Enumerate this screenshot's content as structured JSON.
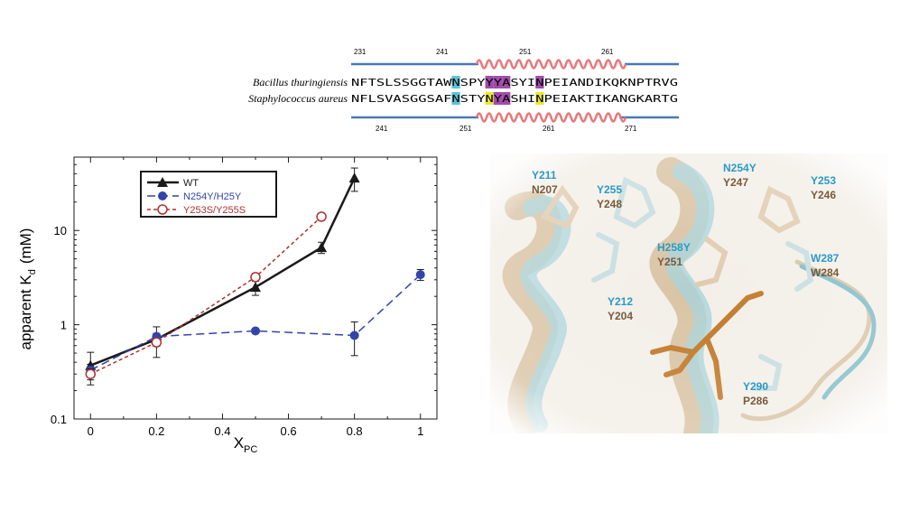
{
  "alignment": {
    "top_numbers": [
      "231",
      "241",
      "251",
      "261"
    ],
    "bottom_numbers": [
      "241",
      "251",
      "261",
      "271"
    ],
    "rows": [
      {
        "species": "Bacillus thuringiensis",
        "sequence": "NFTSLSSGGTAWNSPYYYASYINPEIANDIKQKNPTRVG",
        "highlights": [
          {
            "index": 12,
            "color": "#5bc3d6"
          },
          {
            "index": 16,
            "color": "#a04cab"
          },
          {
            "index": 17,
            "color": "#a04cab"
          },
          {
            "index": 18,
            "color": "#a04cab"
          },
          {
            "index": 22,
            "color": "#a04cab"
          }
        ]
      },
      {
        "species": "Staphylococcus aureus",
        "sequence": "NFLSVASGGSAFNSTYNYASHINPEIAKTIKANGKARTG",
        "highlights": [
          {
            "index": 12,
            "color": "#5bc3d6"
          },
          {
            "index": 16,
            "color": "#e8e832"
          },
          {
            "index": 17,
            "color": "#a04cab"
          },
          {
            "index": 18,
            "color": "#a04cab"
          },
          {
            "index": 22,
            "color": "#e8e832"
          }
        ]
      }
    ],
    "line_color": "#4a78b0",
    "helix_color": "#e8787a"
  },
  "chart_data": {
    "type": "line",
    "xlabel": "X",
    "xlabel_sub": "PC",
    "ylabel": "apparent K",
    "ylabel_sub": "d",
    "ylabel_unit": "(mM)",
    "xlim": [
      -0.05,
      1.05
    ],
    "ylim": [
      0.1,
      60
    ],
    "yscale": "log",
    "x_ticks": [
      "0",
      "0.2",
      "0.4",
      "0.6",
      "0.8",
      "1"
    ],
    "y_ticks": [
      "0.1",
      "1",
      "10"
    ],
    "legend_position": "top-left",
    "series": [
      {
        "name": "WT",
        "color": "#1a1a1a",
        "marker": "triangle",
        "dash": "solid",
        "x": [
          0,
          0.2,
          0.5,
          0.7,
          0.8
        ],
        "y": [
          0.37,
          0.7,
          2.5,
          6.6,
          36
        ],
        "err": [
          0.14,
          0.25,
          0.45,
          0.9,
          10
        ]
      },
      {
        "name": "N254Y/H25Y",
        "color": "#3344aa",
        "marker": "filled-circle",
        "dash": "long-dash",
        "x": [
          0,
          0.2,
          0.5,
          0.8,
          1.0
        ],
        "y": [
          0.33,
          0.75,
          0.86,
          0.77,
          3.4
        ],
        "err": [
          0.05,
          0.06,
          0.05,
          0.3,
          0.45
        ]
      },
      {
        "name": "Y253S/Y255S",
        "color": "#b03030",
        "marker": "open-circle",
        "dash": "short-dash",
        "x": [
          0,
          0.2,
          0.5,
          0.7
        ],
        "y": [
          0.3,
          0.65,
          3.2,
          14
        ],
        "err": [
          0.04,
          0.06,
          0.3,
          1.2
        ]
      }
    ]
  },
  "structure": {
    "residue_labels": [
      {
        "cyan": "Y211",
        "brown": "N207"
      },
      {
        "cyan": "Y255",
        "brown": "Y248"
      },
      {
        "cyan": "N254Y",
        "brown": "Y247"
      },
      {
        "cyan": "Y253",
        "brown": "Y246"
      },
      {
        "cyan": "H258Y",
        "brown": "Y251"
      },
      {
        "cyan": "W287",
        "brown": "W284"
      },
      {
        "cyan": "Y212",
        "brown": "Y204"
      },
      {
        "cyan": "Y290",
        "brown": "P286"
      }
    ],
    "cyan_color": "#2a9ac8",
    "brown_color": "#7a5a3a"
  }
}
